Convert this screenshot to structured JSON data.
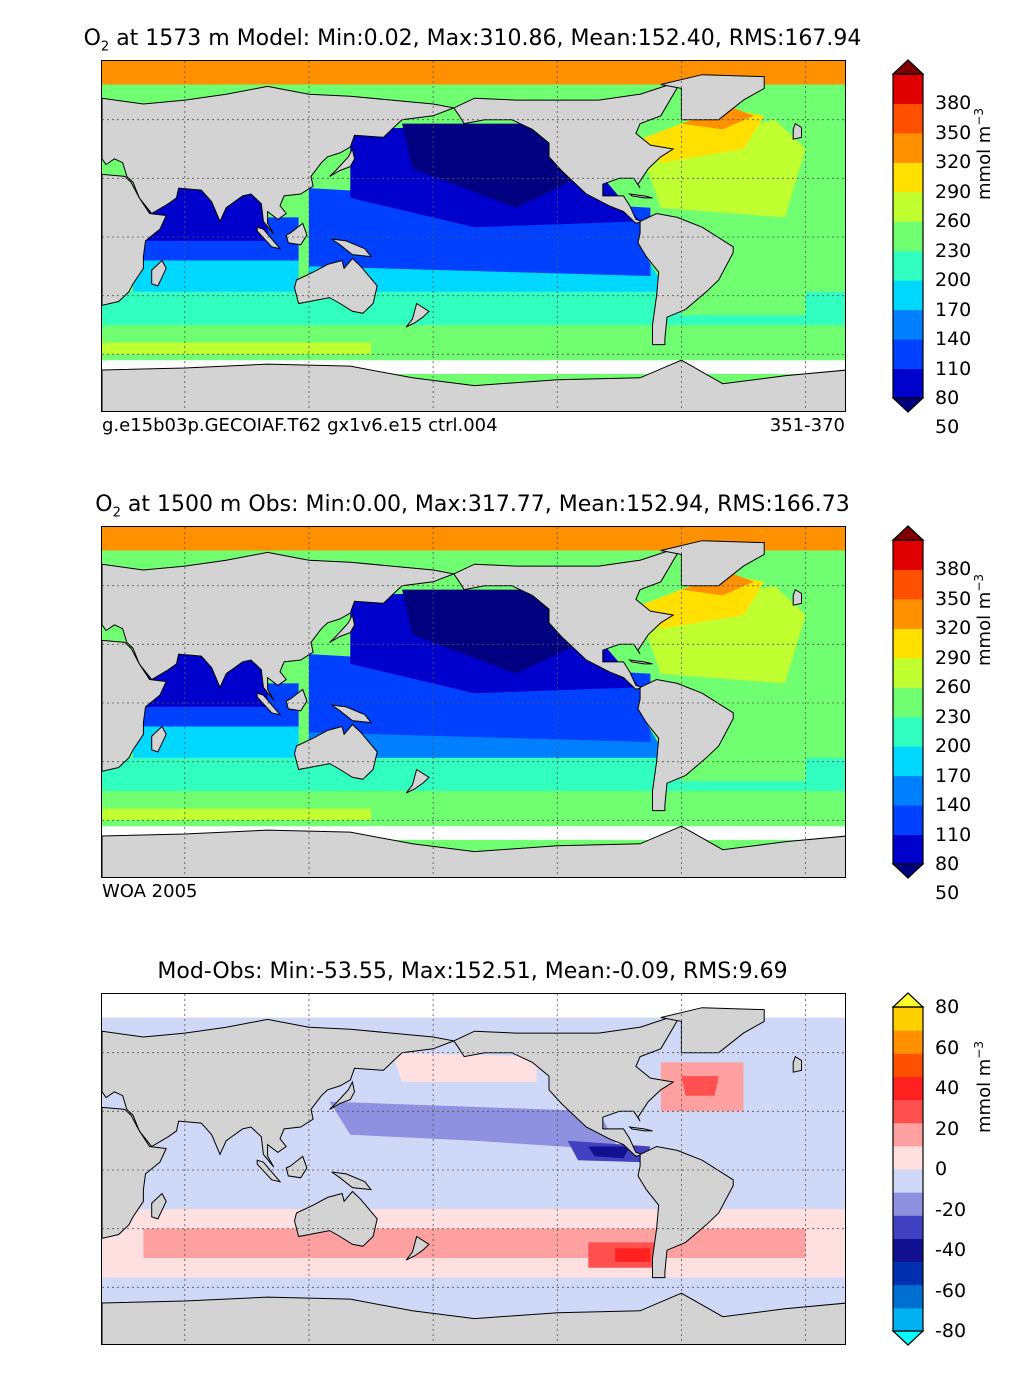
{
  "panels": [
    {
      "id": "model",
      "title_prefix": "O",
      "title_sub": "2",
      "title_rest": " at 1573 m Model: Min:0.02, Max:310.86, Mean:152.40, RMS:167.94",
      "note_left": "g.e15b03p.GECOIAF.T62 gx1v6.e15 ctrl.004",
      "note_right": "351-370",
      "colorbar": {
        "labels": [
          "380",
          "350",
          "320",
          "290",
          "260",
          "230",
          "200",
          "170",
          "140",
          "110",
          "80",
          "50"
        ],
        "units_prefix": "mmol m",
        "units_sup": "−3",
        "colors": [
          "#000080",
          "#0000cd",
          "#0040ff",
          "#0080ff",
          "#00d8ff",
          "#30ffc0",
          "#70ff70",
          "#c0ff30",
          "#ffe000",
          "#ff9000",
          "#ff5000",
          "#e00000",
          "#800000"
        ]
      }
    },
    {
      "id": "obs",
      "title_prefix": "O",
      "title_sub": "2",
      "title_rest": " at 1500 m Obs: Min:0.00, Max:317.77, Mean:152.94, RMS:166.73",
      "note_left": "WOA 2005",
      "note_right": "",
      "colorbar": {
        "labels": [
          "380",
          "350",
          "320",
          "290",
          "260",
          "230",
          "200",
          "170",
          "140",
          "110",
          "80",
          "50"
        ],
        "units_prefix": "mmol m",
        "units_sup": "−3",
        "colors": [
          "#000080",
          "#0000cd",
          "#0040ff",
          "#0080ff",
          "#00d8ff",
          "#30ffc0",
          "#70ff70",
          "#c0ff30",
          "#ffe000",
          "#ff9000",
          "#ff5000",
          "#e00000",
          "#800000"
        ]
      }
    },
    {
      "id": "diff",
      "title_prefix": "",
      "title_sub": "",
      "title_rest": "Mod-Obs: Min:-53.55, Max:152.51, Mean:-0.09, RMS:9.69",
      "note_left": "",
      "note_right": "",
      "colorbar": {
        "labels": [
          "80",
          "60",
          "40",
          "20",
          "0",
          "-20",
          "-40",
          "-60",
          "-80"
        ],
        "units_prefix": "mmol m",
        "units_sup": "−3",
        "colors": [
          "#00ffff",
          "#00b0f0",
          "#0070d0",
          "#0030b0",
          "#101090",
          "#4040c0",
          "#9090e0",
          "#d0d8f8",
          "#ffe0e0",
          "#ffa0a0",
          "#ff5050",
          "#ff2020",
          "#ff5000",
          "#ff9000",
          "#ffd000",
          "#ffff30"
        ]
      }
    }
  ],
  "colors": {
    "land": "#d3d3d3",
    "ocean_missing": "#ffffff",
    "coast": "#000000",
    "grid": "#555555"
  }
}
